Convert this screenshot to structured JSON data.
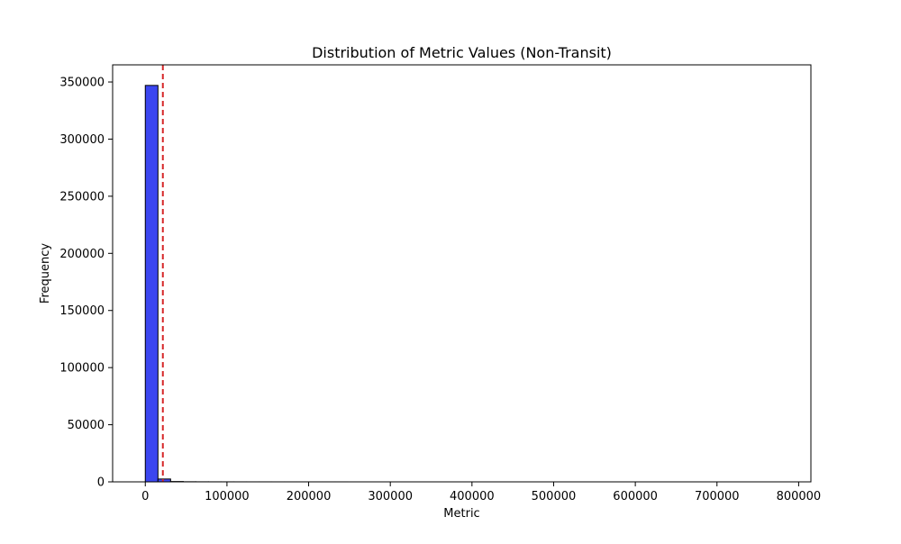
{
  "chart_data": {
    "type": "bar",
    "title": "Distribution of Metric Values (Non-Transit)",
    "xlabel": "Metric",
    "ylabel": "Frequency",
    "xlim": [
      -40000,
      815000
    ],
    "ylim": [
      0,
      365000
    ],
    "x_ticks": [
      0,
      100000,
      200000,
      300000,
      400000,
      500000,
      600000,
      700000,
      800000
    ],
    "y_ticks": [
      0,
      50000,
      100000,
      150000,
      200000,
      250000,
      300000,
      350000
    ],
    "bins": {
      "start": 0,
      "width": 15500,
      "counts": [
        347000,
        2500,
        300,
        100,
        60,
        40,
        30,
        20,
        15,
        12,
        10,
        8,
        6,
        5,
        4,
        4,
        3,
        3,
        2,
        2,
        2,
        2,
        1,
        1,
        1,
        1,
        1,
        1,
        1,
        1,
        1,
        1,
        1,
        1,
        1,
        1,
        1,
        1,
        1,
        1,
        1,
        1,
        1,
        1,
        1,
        1,
        1,
        1,
        1,
        1
      ]
    },
    "reference_line": {
      "x": 21500,
      "color": "#d62728",
      "style": "dashed"
    },
    "bar_color": "#3b46f0",
    "bar_edge_color": "#000000",
    "grid": false,
    "legend": "none"
  }
}
